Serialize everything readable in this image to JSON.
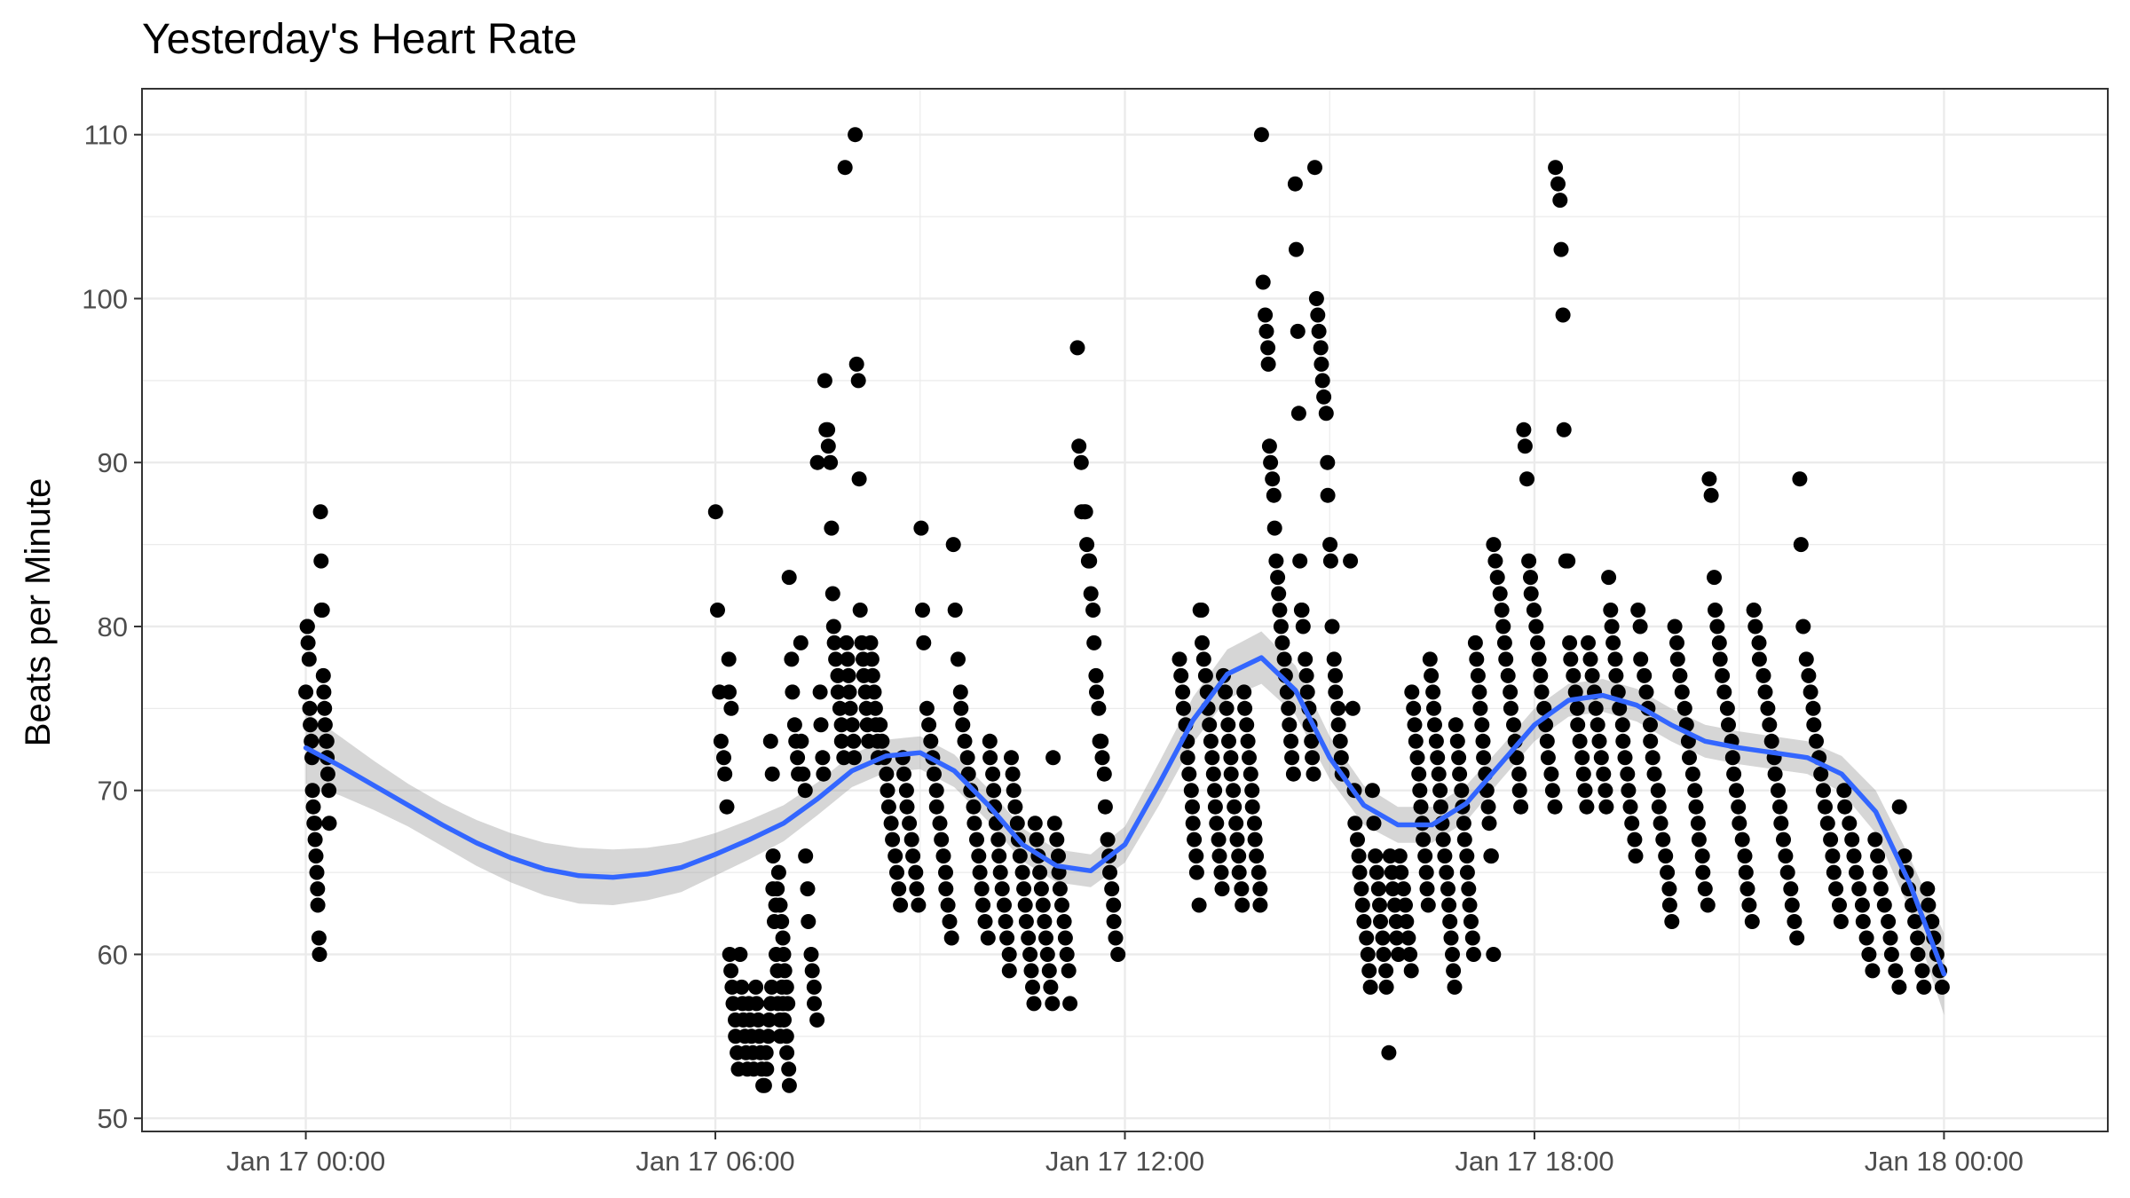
{
  "chart_data": {
    "type": "scatter",
    "title": "Yesterday's Heart Rate",
    "xlabel": "",
    "ylabel": "Beats per Minute",
    "x_unit": "hours from Jan 17 00:00",
    "xlim": [
      -2.4,
      26.4
    ],
    "ylim": [
      49.2,
      112.8
    ],
    "x_ticks": [
      {
        "at": 0,
        "label": "Jan 17 00:00"
      },
      {
        "at": 6,
        "label": "Jan 17 06:00"
      },
      {
        "at": 12,
        "label": "Jan 17 12:00"
      },
      {
        "at": 18,
        "label": "Jan 17 18:00"
      },
      {
        "at": 24,
        "label": "Jan 18 00:00"
      }
    ],
    "y_ticks": [
      50,
      60,
      70,
      80,
      90,
      100,
      110
    ],
    "grid": true,
    "colors": {
      "points": "#000000",
      "smooth_line": "#3366ff",
      "band": "#999999"
    },
    "series": [
      {
        "type": "points",
        "clusters": [
          {
            "t_start": 0.0,
            "t_end": 0.35,
            "values": [
              76,
              80,
              80,
              79,
              78,
              75,
              74,
              73,
              72,
              70,
              69,
              68,
              68,
              67,
              66,
              65,
              64,
              63,
              61,
              60,
              87,
              84,
              81,
              81,
              77,
              76,
              75,
              74,
              73,
              73,
              72,
              71,
              70,
              68
            ]
          },
          {
            "t_start": 6.0,
            "t_end": 6.25,
            "values": [
              87,
              81,
              76,
              73,
              72,
              71,
              69,
              78,
              76,
              75
            ]
          },
          {
            "t_start": 6.2,
            "t_end": 7.1,
            "values": [
              60,
              59,
              58,
              57,
              56,
              55,
              54,
              53,
              60,
              58,
              57,
              56,
              55,
              54,
              53,
              57,
              56,
              55,
              54,
              53,
              58,
              57,
              56,
              55,
              54,
              53,
              52,
              52,
              54,
              53,
              55,
              56,
              57,
              58,
              64,
              62,
              60,
              59,
              57,
              56,
              55,
              58,
              57,
              56,
              55,
              54,
              53,
              52
            ]
          },
          {
            "t_start": 6.8,
            "t_end": 7.6,
            "values": [
              73,
              71,
              66,
              63,
              64,
              65,
              63,
              62,
              61,
              60,
              59,
              58,
              57,
              83,
              78,
              76,
              74,
              73,
              72,
              71,
              79,
              73,
              71,
              70,
              66,
              64,
              62,
              60,
              59,
              58,
              57,
              56,
              90,
              76,
              74,
              72,
              71
            ]
          },
          {
            "t_start": 7.6,
            "t_end": 8.4,
            "values": [
              95,
              92,
              92,
              91,
              90,
              86,
              82,
              80,
              79,
              78,
              77,
              76,
              75,
              74,
              73,
              72,
              108,
              79,
              78,
              77,
              76,
              75,
              74,
              73,
              72,
              110,
              96,
              95,
              89,
              81,
              79,
              78,
              77,
              76,
              75,
              74,
              73,
              79,
              78,
              77,
              76,
              75,
              74,
              73,
              72
            ]
          },
          {
            "t_start": 8.4,
            "t_end": 10.0,
            "values": [
              74,
              73,
              72,
              71,
              70,
              69,
              68,
              67,
              66,
              65,
              64,
              63,
              72,
              71,
              70,
              69,
              68,
              67,
              66,
              65,
              64,
              63,
              86,
              81,
              79,
              75,
              74,
              73,
              72,
              71,
              70,
              69,
              68,
              67,
              66,
              65,
              64,
              63,
              62,
              61,
              85,
              81,
              78,
              76,
              75,
              74,
              73,
              72,
              71,
              70,
              69,
              68,
              67,
              66,
              65,
              64,
              63,
              62,
              61
            ]
          },
          {
            "t_start": 10.0,
            "t_end": 11.2,
            "values": [
              73,
              72,
              71,
              70,
              69,
              68,
              67,
              66,
              65,
              64,
              63,
              62,
              61,
              60,
              59,
              72,
              71,
              70,
              69,
              68,
              67,
              66,
              65,
              64,
              63,
              62,
              61,
              60,
              59,
              58,
              57,
              68,
              67,
              66,
              65,
              64,
              63,
              62,
              61,
              60,
              59,
              58,
              57,
              72,
              68,
              67,
              66,
              65,
              64,
              63,
              62,
              61,
              60,
              59,
              57
            ]
          },
          {
            "t_start": 11.3,
            "t_end": 11.9,
            "values": [
              97,
              91,
              90,
              87,
              87,
              87,
              85,
              84,
              84,
              82,
              81,
              79,
              77,
              76,
              75,
              73,
              73,
              72,
              71,
              69,
              67,
              66,
              65,
              64,
              63,
              62,
              61,
              60
            ]
          },
          {
            "t_start": 12.8,
            "t_end": 14.0,
            "values": [
              78,
              77,
              76,
              75,
              74,
              73,
              72,
              71,
              70,
              69,
              68,
              67,
              66,
              65,
              63,
              81,
              81,
              79,
              78,
              77,
              76,
              75,
              74,
              73,
              72,
              71,
              70,
              69,
              68,
              67,
              66,
              65,
              64,
              77,
              76,
              75,
              74,
              73,
              72,
              71,
              70,
              69,
              68,
              67,
              66,
              65,
              64,
              63,
              76,
              75,
              74,
              73,
              72,
              71,
              70,
              69,
              68,
              67,
              66,
              65,
              64,
              63
            ]
          },
          {
            "t_start": 14.0,
            "t_end": 15.2,
            "values": [
              110,
              101,
              99,
              98,
              97,
              96,
              91,
              90,
              89,
              88,
              86,
              84,
              83,
              82,
              81,
              80,
              79,
              78,
              77,
              76,
              75,
              74,
              73,
              72,
              71,
              107,
              103,
              98,
              93,
              84,
              81,
              81,
              80,
              78,
              77,
              76,
              75,
              74,
              73,
              72,
              71,
              108,
              100,
              99,
              98,
              97,
              96,
              95,
              94,
              93,
              90,
              88,
              85,
              84,
              80,
              78,
              77,
              76,
              75,
              74,
              73,
              72,
              71
            ]
          },
          {
            "t_start": 15.3,
            "t_end": 16.2,
            "values": [
              84,
              75,
              70,
              68,
              67,
              66,
              65,
              64,
              63,
              62,
              61,
              60,
              59,
              58,
              70,
              68,
              66,
              65,
              64,
              63,
              62,
              61,
              60,
              59,
              58,
              54,
              66,
              65,
              64,
              63,
              62,
              61,
              60,
              66,
              65,
              64,
              63,
              62,
              61,
              60,
              59
            ]
          },
          {
            "t_start": 16.2,
            "t_end": 17.4,
            "values": [
              76,
              75,
              74,
              73,
              72,
              71,
              70,
              69,
              68,
              67,
              66,
              65,
              64,
              63,
              78,
              77,
              76,
              75,
              74,
              73,
              72,
              71,
              70,
              69,
              68,
              67,
              66,
              65,
              64,
              63,
              62,
              61,
              60,
              59,
              58,
              74,
              73,
              72,
              71,
              70,
              69,
              68,
              67,
              66,
              65,
              64,
              63,
              62,
              61,
              60,
              79,
              78,
              77,
              76,
              75,
              74,
              73,
              72,
              71,
              70,
              69,
              68,
              66,
              66,
              60
            ]
          },
          {
            "t_start": 17.4,
            "t_end": 18.3,
            "values": [
              85,
              84,
              83,
              82,
              81,
              80,
              79,
              78,
              77,
              76,
              75,
              74,
              73,
              72,
              71,
              70,
              69,
              92,
              91,
              89,
              84,
              83,
              82,
              81,
              80,
              79,
              78,
              77,
              76,
              75,
              74,
              73,
              72,
              71,
              70,
              69
            ]
          },
          {
            "t_start": 18.3,
            "t_end": 19.5,
            "values": [
              108,
              107,
              106,
              103,
              99,
              92,
              84,
              84,
              79,
              78,
              77,
              76,
              75,
              74,
              73,
              72,
              71,
              70,
              69,
              79,
              78,
              77,
              76,
              75,
              74,
              73,
              72,
              71,
              70,
              69,
              83,
              81,
              80,
              79,
              78,
              77,
              76,
              75,
              74,
              73,
              72,
              71,
              70,
              69,
              68,
              67,
              66
            ]
          },
          {
            "t_start": 19.5,
            "t_end": 21.2,
            "values": [
              81,
              80,
              78,
              77,
              76,
              75,
              74,
              73,
              72,
              71,
              70,
              69,
              68,
              67,
              66,
              65,
              64,
              63,
              62,
              80,
              79,
              78,
              77,
              76,
              75,
              74,
              73,
              72,
              71,
              70,
              69,
              68,
              67,
              66,
              65,
              64,
              63,
              89,
              88,
              83,
              81,
              80,
              79,
              78,
              77,
              76,
              75,
              74,
              73,
              72,
              71,
              70,
              69,
              68,
              67,
              66,
              65,
              64,
              63,
              62
            ]
          },
          {
            "t_start": 21.2,
            "t_end": 22.5,
            "values": [
              81,
              80,
              79,
              78,
              77,
              76,
              75,
              74,
              73,
              72,
              71,
              70,
              69,
              68,
              67,
              66,
              65,
              64,
              63,
              62,
              61,
              89,
              85,
              80,
              78,
              77,
              76,
              75,
              74,
              73,
              72,
              71,
              70,
              69,
              68,
              67,
              66,
              65,
              64,
              63,
              62
            ]
          },
          {
            "t_start": 22.5,
            "t_end": 24.0,
            "values": [
              70,
              69,
              68,
              67,
              66,
              65,
              64,
              63,
              62,
              61,
              60,
              59,
              67,
              66,
              65,
              64,
              63,
              62,
              61,
              60,
              59,
              58,
              69,
              66,
              65,
              64,
              63,
              62,
              61,
              60,
              59,
              58,
              64,
              63,
              62,
              61,
              60,
              59,
              58
            ]
          }
        ]
      },
      {
        "type": "smooth",
        "x": [
          0,
          0.5,
          1,
          1.5,
          2,
          2.5,
          3,
          3.5,
          4,
          4.5,
          5,
          5.5,
          6,
          6.5,
          7,
          7.5,
          8,
          8.5,
          9,
          9.5,
          10,
          10.5,
          11,
          11.5,
          12,
          12.5,
          13,
          13.5,
          14,
          14.5,
          15,
          15.5,
          16,
          16.5,
          17,
          17.5,
          18,
          18.5,
          19,
          19.5,
          20,
          20.5,
          21,
          21.5,
          22,
          22.5,
          23,
          23.5,
          24
        ],
        "y": [
          72.6,
          71.5,
          70.3,
          69.1,
          67.9,
          66.8,
          65.9,
          65.2,
          64.8,
          64.7,
          64.9,
          65.3,
          66.1,
          67.0,
          68.0,
          69.5,
          71.2,
          72.1,
          72.3,
          71.2,
          69.1,
          66.7,
          65.4,
          65.1,
          66.7,
          70.4,
          74.3,
          77.1,
          78.1,
          76.1,
          72.0,
          69.1,
          67.9,
          67.9,
          69.2,
          71.6,
          74.0,
          75.5,
          75.8,
          75.2,
          74.0,
          73.0,
          72.6,
          72.3,
          72.0,
          71.0,
          68.7,
          64.3,
          58.8
        ],
        "ci_half_width": [
          2.2,
          1.8,
          1.5,
          1.3,
          1.3,
          1.4,
          1.5,
          1.6,
          1.7,
          1.7,
          1.6,
          1.5,
          1.3,
          1.2,
          1.1,
          1.0,
          1.0,
          1.0,
          1.0,
          1.0,
          1.0,
          1.0,
          1.0,
          1.0,
          1.1,
          1.3,
          1.4,
          1.5,
          1.6,
          1.5,
          1.3,
          1.2,
          1.1,
          1.1,
          1.1,
          1.0,
          1.0,
          1.0,
          1.0,
          1.0,
          1.0,
          1.0,
          1.0,
          1.0,
          1.0,
          1.1,
          1.3,
          1.6,
          2.5
        ]
      }
    ]
  }
}
